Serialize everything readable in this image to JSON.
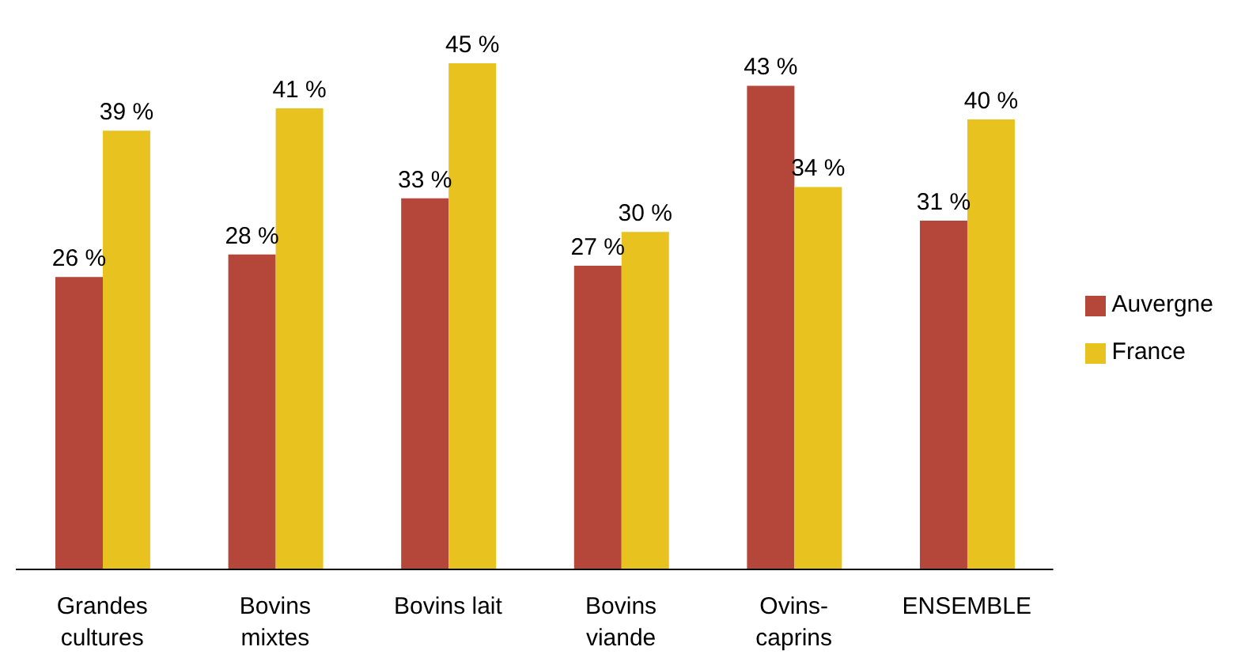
{
  "chart_data": {
    "type": "bar",
    "categories": [
      "Grandes cultures",
      "Bovins mixtes",
      "Bovins lait",
      "Bovins viande",
      "Ovins-caprins",
      "ENSEMBLE"
    ],
    "series": [
      {
        "name": "Auvergne",
        "color": "#b5473a",
        "values": [
          26,
          28,
          33,
          27,
          43,
          31
        ],
        "value_labels": [
          "26 %",
          "28 %",
          "33 %",
          "27 %",
          "43 %",
          "31 %"
        ]
      },
      {
        "name": "France",
        "color": "#e8c21f",
        "values": [
          39,
          41,
          45,
          30,
          34,
          40
        ],
        "value_labels": [
          "39 %",
          "41 %",
          "45 %",
          "30 %",
          "34 %",
          "40 %"
        ]
      }
    ],
    "legend": "right"
  }
}
